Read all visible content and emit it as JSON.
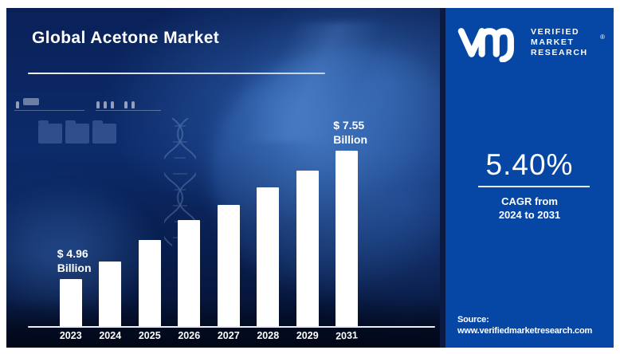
{
  "title": "Global Acetone Market",
  "brand": {
    "line1": "VERIFIED",
    "line2": "MARKET",
    "line3": "RESEARCH",
    "registered": "®"
  },
  "stat": {
    "value": "5.40%",
    "caption_line1": "CAGR from",
    "caption_line2": "2024 to 2031"
  },
  "source": {
    "label": "Source:",
    "url_text": "www.verifiedmarketresearch.com"
  },
  "colors": {
    "brand_panel_blue": "#0647A5",
    "photo_panel_navy": "#0B2459",
    "bar_color": "#FFFFFF"
  },
  "chart_data": {
    "type": "bar",
    "title": "Global Acetone Market",
    "unit": "USD Billion",
    "categories": [
      "2023",
      "2024",
      "2025",
      "2026",
      "2027",
      "2028",
      "2029",
      "2031"
    ],
    "values": [
      4.96,
      5.3,
      5.75,
      6.15,
      6.45,
      6.8,
      7.15,
      7.55
    ],
    "annotations": [
      {
        "category": "2023",
        "line1": "$ 4.96",
        "line2": "Billion"
      },
      {
        "category": "2031",
        "line1": "$ 7.55",
        "line2": "Billion"
      }
    ],
    "ylim": [
      4.0,
      7.55
    ],
    "bar_color": "#FFFFFF",
    "grid": false,
    "legend": false
  }
}
